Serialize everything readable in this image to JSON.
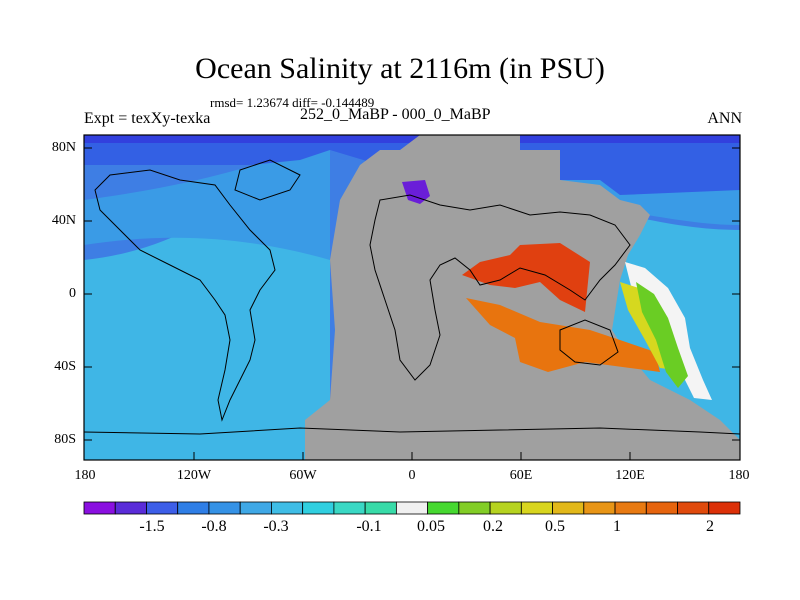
{
  "title": "Ocean Salinity at 2116m (in PSU)",
  "stats": "rmsd= 1.23674 diff= -0.144489",
  "expt": "Expt = texXy-texka",
  "comparison": "252_0_MaBP - 000_0_MaBP",
  "season": "ANN",
  "lat_ticks": [
    "80N",
    "40N",
    "0",
    "40S",
    "80S"
  ],
  "lon_ticks": [
    "180",
    "120W",
    "60W",
    "0",
    "60E",
    "120E",
    "180"
  ],
  "colorbar": {
    "colors": [
      "#8a10e0",
      "#5a2cd8",
      "#3d5ee8",
      "#2f7ee6",
      "#3592e6",
      "#3fa8e6",
      "#3fbde6",
      "#30cfe0",
      "#3ad8c4",
      "#38dba8",
      "#f0f0f0",
      "#46d830",
      "#82cd26",
      "#b6d320",
      "#d8d51e",
      "#e2b81a",
      "#e89516",
      "#e87a12",
      "#e6640e",
      "#e04a0c",
      "#dc3008"
    ],
    "labels": [
      "-1.5",
      "-0.8",
      "-0.3",
      "-0.1",
      "0.05",
      "0.2",
      "0.5",
      "1",
      "2"
    ]
  },
  "map_colors": {
    "land": "#a0a0a0",
    "ocean_deep": "#3e7ee4",
    "ocean_mid": "#3a9be6",
    "ocean_light": "#3fb6e6",
    "arctic": "#3360e4",
    "arctic_strip": "#3240de",
    "purple": "#6a1ed8",
    "red": "#e04010",
    "orange": "#e8740e",
    "green": "#6acd24",
    "yellow": "#d6d81f",
    "white": "#f4f4f4"
  }
}
